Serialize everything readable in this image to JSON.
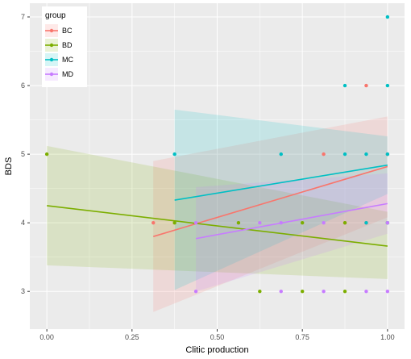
{
  "chart_data": {
    "type": "scatter",
    "xlabel": "Clitic production",
    "ylabel": "BDS",
    "xlim": [
      -0.05,
      1.05
    ],
    "ylim": [
      2.45,
      7.2
    ],
    "x_ticks": [
      0,
      0.25,
      0.5,
      0.75,
      1
    ],
    "x_tick_labels": [
      "0.00",
      "0.25",
      "0.50",
      "0.75",
      "1.00"
    ],
    "y_ticks": [
      3,
      4,
      5,
      6,
      7
    ],
    "y_tick_labels": [
      "3",
      "4",
      "5",
      "6",
      "7"
    ],
    "grid": true,
    "legend": {
      "title": "group",
      "position": "top-left"
    },
    "series": [
      {
        "name": "BC",
        "color": "#F8766D",
        "points": [
          [
            0.3125,
            4
          ],
          [
            0.8125,
            5
          ],
          [
            0.875,
            4
          ],
          [
            0.9375,
            4
          ],
          [
            0.9375,
            6
          ],
          [
            1,
            5
          ]
        ],
        "fit": {
          "x": [
            0.3125,
            1
          ],
          "y": [
            3.8,
            4.82
          ]
        },
        "band": {
          "x": [
            0.3125,
            1
          ],
          "lower": [
            2.7,
            4.08
          ],
          "upper": [
            4.9,
            5.55
          ]
        }
      },
      {
        "name": "BD",
        "color": "#7CAE00",
        "points": [
          [
            0,
            5
          ],
          [
            0.375,
            4
          ],
          [
            0.5625,
            4
          ],
          [
            0.625,
            3
          ],
          [
            0.75,
            3
          ],
          [
            0.75,
            4
          ],
          [
            0.875,
            3
          ],
          [
            0.875,
            4
          ],
          [
            1,
            4
          ]
        ],
        "fit": {
          "x": [
            0,
            1
          ],
          "y": [
            4.25,
            3.66
          ]
        },
        "band": {
          "x": [
            0,
            1
          ],
          "lower": [
            3.38,
            3.18
          ],
          "upper": [
            5.12,
            4.16
          ]
        }
      },
      {
        "name": "MC",
        "color": "#00BFC4",
        "points": [
          [
            0.375,
            5
          ],
          [
            0.6875,
            5
          ],
          [
            0.875,
            5
          ],
          [
            0.875,
            6
          ],
          [
            0.9375,
            4
          ],
          [
            0.9375,
            5
          ],
          [
            1,
            4
          ],
          [
            1,
            5
          ],
          [
            1,
            6
          ],
          [
            1,
            7
          ]
        ],
        "fit": {
          "x": [
            0.375,
            1
          ],
          "y": [
            4.33,
            4.84
          ]
        },
        "band": {
          "x": [
            0.375,
            1
          ],
          "lower": [
            3.02,
            4.42
          ],
          "upper": [
            5.65,
            5.26
          ]
        }
      },
      {
        "name": "MD",
        "color": "#C77CFF",
        "points": [
          [
            0.4375,
            3
          ],
          [
            0.4375,
            4
          ],
          [
            0.625,
            4
          ],
          [
            0.6875,
            3
          ],
          [
            0.6875,
            4
          ],
          [
            0.8125,
            3
          ],
          [
            0.8125,
            4
          ],
          [
            0.9375,
            3
          ],
          [
            1,
            3
          ],
          [
            1,
            4
          ]
        ],
        "fit": {
          "x": [
            0.4375,
            1
          ],
          "y": [
            3.77,
            4.28
          ]
        },
        "band": {
          "x": [
            0.4375,
            1
          ],
          "lower": [
            3.0,
            3.84
          ],
          "upper": [
            4.52,
            4.72
          ]
        }
      }
    ]
  }
}
